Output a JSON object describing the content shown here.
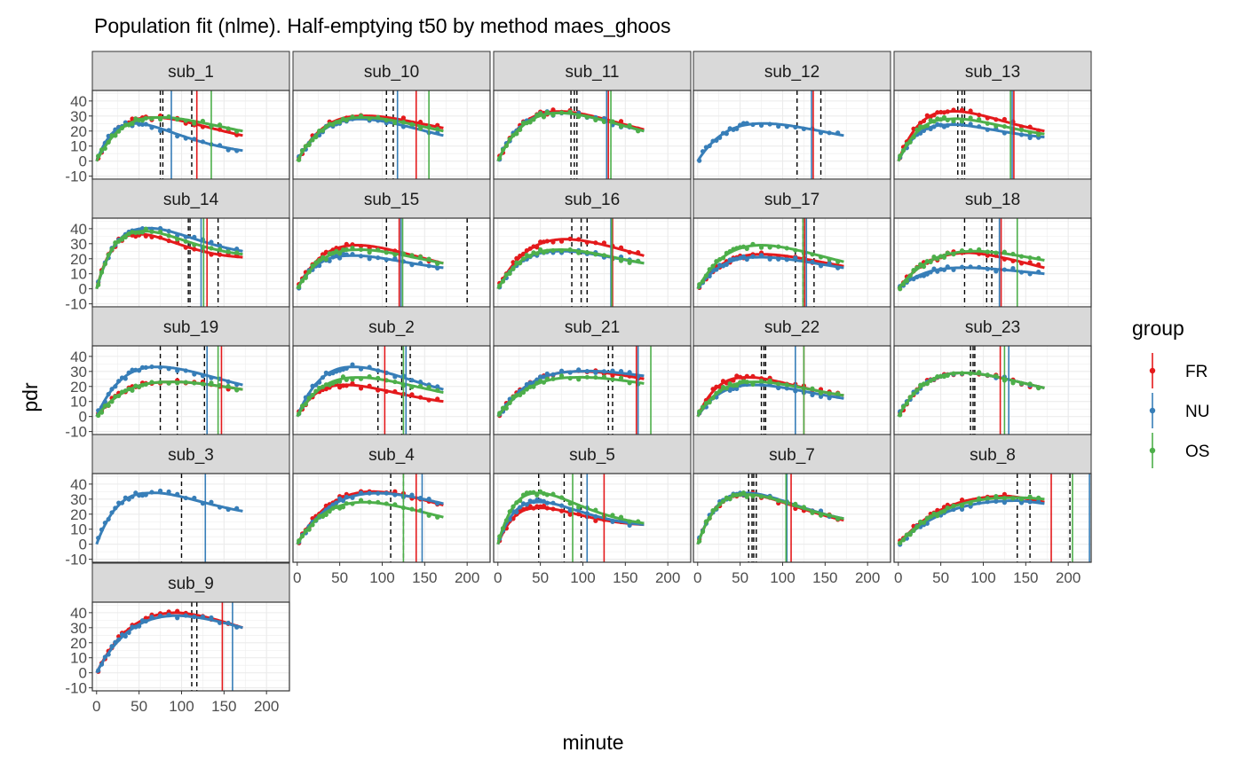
{
  "chart_data": {
    "type": "scatter",
    "title": "Population fit (nlme). Half-emptying t50 by method maes_ghoos",
    "xlabel": "minute",
    "ylabel": "pdr",
    "xlim": [
      -5,
      227
    ],
    "ylim": [
      -12,
      47
    ],
    "x_ticks": [
      0,
      50,
      100,
      150,
      200
    ],
    "x_tick_labels": [
      "0",
      "50",
      "100",
      "150",
      "200"
    ],
    "y_ticks": [
      -10,
      0,
      10,
      20,
      30,
      40
    ],
    "y_tick_labels": [
      "-10",
      "0",
      "10",
      "20",
      "30",
      "40"
    ],
    "grid": true,
    "legend_position": "right",
    "legend": {
      "title": "group",
      "items": [
        {
          "label": "FR",
          "color": "#E41A1C"
        },
        {
          "label": "NU",
          "color": "#377EB8"
        },
        {
          "label": "OS",
          "color": "#4DAF4A"
        }
      ]
    },
    "panels": [
      {
        "label": "sub_1",
        "series": [
          {
            "group": "FR",
            "peak": 29,
            "tmax": 65,
            "end": 17
          },
          {
            "group": "NU",
            "peak": 25,
            "tmax": 45,
            "end": 7
          },
          {
            "group": "OS",
            "peak": 29,
            "tmax": 70,
            "end": 20
          }
        ],
        "t50": [
          {
            "group": "FR",
            "x": 118
          },
          {
            "group": "NU",
            "x": 88
          },
          {
            "group": "OS",
            "x": 135
          }
        ],
        "dashed": [
          75,
          78,
          112
        ]
      },
      {
        "label": "sub_10",
        "series": [
          {
            "group": "FR",
            "peak": 30,
            "tmax": 75,
            "end": 22
          },
          {
            "group": "NU",
            "peak": 28,
            "tmax": 75,
            "end": 17
          },
          {
            "group": "OS",
            "peak": 29,
            "tmax": 75,
            "end": 20
          }
        ],
        "t50": [
          {
            "group": "FR",
            "x": 140
          },
          {
            "group": "NU",
            "x": 118
          },
          {
            "group": "OS",
            "x": 155
          }
        ],
        "dashed": [
          105,
          113,
          118
        ]
      },
      {
        "label": "sub_11",
        "series": [
          {
            "group": "FR",
            "peak": 33,
            "tmax": 70,
            "end": 21
          },
          {
            "group": "NU",
            "peak": 32,
            "tmax": 70,
            "end": 20
          },
          {
            "group": "OS",
            "peak": 32,
            "tmax": 72,
            "end": 20
          }
        ],
        "t50": [
          {
            "group": "FR",
            "x": 130
          },
          {
            "group": "NU",
            "x": 128
          },
          {
            "group": "OS",
            "x": 133
          }
        ],
        "dashed": [
          86,
          90,
          93
        ]
      },
      {
        "label": "sub_12",
        "series": [
          {
            "group": "NU",
            "peak": 25,
            "tmax": 75,
            "end": 17
          }
        ],
        "t50": [
          {
            "group": "FR",
            "x": 136
          },
          {
            "group": "NU",
            "x": 134
          }
        ],
        "dashed": [
          117,
          145
        ]
      },
      {
        "label": "sub_13",
        "series": [
          {
            "group": "FR",
            "peak": 33,
            "tmax": 60,
            "end": 20
          },
          {
            "group": "NU",
            "peak": 24,
            "tmax": 55,
            "end": 16
          },
          {
            "group": "OS",
            "peak": 28,
            "tmax": 60,
            "end": 18
          }
        ],
        "t50": [
          {
            "group": "FR",
            "x": 136
          },
          {
            "group": "NU",
            "x": 134
          },
          {
            "group": "OS",
            "x": 132
          }
        ],
        "dashed": [
          70,
          75,
          78
        ]
      },
      {
        "label": "sub_14",
        "series": [
          {
            "group": "FR",
            "peak": 36,
            "tmax": 45,
            "end": 21
          },
          {
            "group": "NU",
            "peak": 40,
            "tmax": 55,
            "end": 25
          },
          {
            "group": "OS",
            "peak": 38,
            "tmax": 50,
            "end": 23
          }
        ],
        "t50": [
          {
            "group": "FR",
            "x": 130
          },
          {
            "group": "NU",
            "x": 123
          },
          {
            "group": "OS",
            "x": 126
          }
        ],
        "dashed": [
          108,
          110,
          143
        ]
      },
      {
        "label": "sub_15",
        "series": [
          {
            "group": "FR",
            "peak": 29,
            "tmax": 70,
            "end": 17
          },
          {
            "group": "NU",
            "peak": 22,
            "tmax": 60,
            "end": 14
          },
          {
            "group": "OS",
            "peak": 26,
            "tmax": 70,
            "end": 17
          }
        ],
        "t50": [
          {
            "group": "FR",
            "x": 120
          },
          {
            "group": "NU",
            "x": 122
          },
          {
            "group": "OS",
            "x": 124
          }
        ],
        "dashed": [
          105,
          200
        ]
      },
      {
        "label": "sub_16",
        "series": [
          {
            "group": "FR",
            "peak": 33,
            "tmax": 80,
            "end": 22
          },
          {
            "group": "NU",
            "peak": 25,
            "tmax": 70,
            "end": 17
          },
          {
            "group": "OS",
            "peak": 26,
            "tmax": 70,
            "end": 17
          }
        ],
        "t50": [
          {
            "group": "FR",
            "x": 135
          },
          {
            "group": "NU",
            "x": 133
          },
          {
            "group": "OS",
            "x": 134
          }
        ],
        "dashed": [
          87,
          98,
          105
        ]
      },
      {
        "label": "sub_17",
        "series": [
          {
            "group": "FR",
            "peak": 23,
            "tmax": 75,
            "end": 15
          },
          {
            "group": "NU",
            "peak": 21,
            "tmax": 70,
            "end": 14
          },
          {
            "group": "OS",
            "peak": 29,
            "tmax": 75,
            "end": 18
          }
        ],
        "t50": [
          {
            "group": "FR",
            "x": 126
          },
          {
            "group": "NU",
            "x": 128
          },
          {
            "group": "OS",
            "x": 124
          }
        ],
        "dashed": [
          115,
          124,
          137
        ]
      },
      {
        "label": "sub_18",
        "series": [
          {
            "group": "FR",
            "peak": 24,
            "tmax": 85,
            "end": 14
          },
          {
            "group": "NU",
            "peak": 14,
            "tmax": 75,
            "end": 10
          },
          {
            "group": "OS",
            "peak": 25,
            "tmax": 90,
            "end": 19
          }
        ],
        "t50": [
          {
            "group": "FR",
            "x": 121
          },
          {
            "group": "NU",
            "x": 119
          },
          {
            "group": "OS",
            "x": 140
          }
        ],
        "dashed": [
          78,
          104,
          110
        ]
      },
      {
        "label": "sub_19",
        "series": [
          {
            "group": "FR",
            "peak": 23,
            "tmax": 85,
            "end": 18
          },
          {
            "group": "NU",
            "peak": 33,
            "tmax": 70,
            "end": 21
          },
          {
            "group": "OS",
            "peak": 23,
            "tmax": 85,
            "end": 18
          }
        ],
        "t50": [
          {
            "group": "FR",
            "x": 147
          },
          {
            "group": "NU",
            "x": 130
          },
          {
            "group": "OS",
            "x": 143
          }
        ],
        "dashed": [
          75,
          95,
          127
        ]
      },
      {
        "label": "sub_2",
        "series": [
          {
            "group": "FR",
            "peak": 21,
            "tmax": 55,
            "end": 10
          },
          {
            "group": "NU",
            "peak": 33,
            "tmax": 65,
            "end": 18
          },
          {
            "group": "OS",
            "peak": 26,
            "tmax": 70,
            "end": 16
          }
        ],
        "t50": [
          {
            "group": "FR",
            "x": 103
          },
          {
            "group": "NU",
            "x": 128
          },
          {
            "group": "OS",
            "x": 125
          }
        ],
        "dashed": [
          95,
          123,
          133
        ]
      },
      {
        "label": "sub_21",
        "series": [
          {
            "group": "FR",
            "peak": 30,
            "tmax": 95,
            "end": 25
          },
          {
            "group": "NU",
            "peak": 30,
            "tmax": 95,
            "end": 27
          },
          {
            "group": "OS",
            "peak": 26,
            "tmax": 90,
            "end": 22
          }
        ],
        "t50": [
          {
            "group": "FR",
            "x": 163
          },
          {
            "group": "NU",
            "x": 165
          },
          {
            "group": "OS",
            "x": 180
          }
        ],
        "dashed": [
          130,
          135
        ]
      },
      {
        "label": "sub_22",
        "series": [
          {
            "group": "FR",
            "peak": 26,
            "tmax": 55,
            "end": 14
          },
          {
            "group": "NU",
            "peak": 21,
            "tmax": 65,
            "end": 12
          },
          {
            "group": "OS",
            "peak": 23,
            "tmax": 65,
            "end": 14
          }
        ],
        "t50": [
          {
            "group": "FR",
            "x": 125
          },
          {
            "group": "NU",
            "x": 115
          },
          {
            "group": "OS",
            "x": 125
          }
        ],
        "dashed": [
          75,
          78,
          80
        ]
      },
      {
        "label": "sub_23",
        "series": [
          {
            "group": "FR",
            "peak": 29,
            "tmax": 75,
            "end": 19
          },
          {
            "group": "NU",
            "peak": 29,
            "tmax": 75,
            "end": 19
          },
          {
            "group": "OS",
            "peak": 29,
            "tmax": 75,
            "end": 19
          }
        ],
        "t50": [
          {
            "group": "FR",
            "x": 120
          },
          {
            "group": "NU",
            "x": 130
          },
          {
            "group": "OS",
            "x": 125
          }
        ],
        "dashed": [
          85,
          88,
          90
        ]
      },
      {
        "label": "sub_3",
        "series": [
          {
            "group": "NU",
            "peak": 34,
            "tmax": 60,
            "end": 22
          }
        ],
        "t50": [
          {
            "group": "NU",
            "x": 128
          }
        ],
        "dashed": [
          100
        ]
      },
      {
        "label": "sub_4",
        "series": [
          {
            "group": "FR",
            "peak": 35,
            "tmax": 90,
            "end": 26
          },
          {
            "group": "NU",
            "peak": 34,
            "tmax": 95,
            "end": 27
          },
          {
            "group": "OS",
            "peak": 28,
            "tmax": 80,
            "end": 18
          }
        ],
        "t50": [
          {
            "group": "FR",
            "x": 140
          },
          {
            "group": "NU",
            "x": 147
          },
          {
            "group": "OS",
            "x": 125
          }
        ],
        "dashed": [
          110,
          125
        ]
      },
      {
        "label": "sub_5",
        "series": [
          {
            "group": "FR",
            "peak": 24,
            "tmax": 45,
            "end": 13
          },
          {
            "group": "NU",
            "peak": 28,
            "tmax": 45,
            "end": 13
          },
          {
            "group": "OS",
            "peak": 34,
            "tmax": 45,
            "end": 14
          }
        ],
        "t50": [
          {
            "group": "FR",
            "x": 125
          },
          {
            "group": "NU",
            "x": 105
          },
          {
            "group": "OS",
            "x": 88
          }
        ],
        "dashed": [
          48,
          78,
          98
        ]
      },
      {
        "label": "sub_7",
        "series": [
          {
            "group": "FR",
            "peak": 33,
            "tmax": 55,
            "end": 16
          },
          {
            "group": "NU",
            "peak": 34,
            "tmax": 55,
            "end": 17
          },
          {
            "group": "OS",
            "peak": 33,
            "tmax": 55,
            "end": 17
          }
        ],
        "t50": [
          {
            "group": "FR",
            "x": 110
          },
          {
            "group": "NU",
            "x": 105
          },
          {
            "group": "OS",
            "x": 104
          }
        ],
        "dashed": [
          60,
          64,
          66,
          69
        ]
      },
      {
        "label": "sub_8",
        "series": [
          {
            "group": "FR",
            "peak": 32,
            "tmax": 130,
            "end": 28
          },
          {
            "group": "NU",
            "peak": 29,
            "tmax": 140,
            "end": 27
          },
          {
            "group": "OS",
            "peak": 31,
            "tmax": 135,
            "end": 30
          }
        ],
        "t50": [
          {
            "group": "FR",
            "x": 180
          },
          {
            "group": "NU",
            "x": 225
          },
          {
            "group": "OS",
            "x": 205
          }
        ],
        "dashed": [
          140,
          155,
          202
        ]
      },
      {
        "label": "sub_9",
        "series": [
          {
            "group": "FR",
            "peak": 40,
            "tmax": 95,
            "end": 30
          },
          {
            "group": "NU",
            "peak": 38,
            "tmax": 95,
            "end": 30
          }
        ],
        "t50": [
          {
            "group": "FR",
            "x": 148
          },
          {
            "group": "NU",
            "x": 160
          }
        ],
        "dashed": [
          112,
          118
        ]
      }
    ]
  }
}
